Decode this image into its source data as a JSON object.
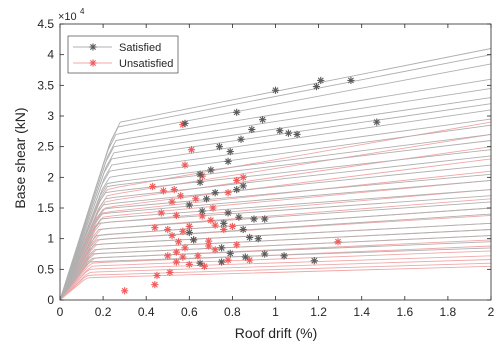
{
  "chart_data": {
    "type": "scatter",
    "xlabel": "Roof drift (%)",
    "ylabel": "Base shear (kN)",
    "y_multiplier_label": "×10",
    "y_multiplier_exponent": "4",
    "xlim": [
      0,
      2
    ],
    "ylim": [
      0,
      4.5
    ],
    "x_ticks": [
      "0",
      "0.2",
      "0.4",
      "0.6",
      "0.8",
      "1",
      "1.2",
      "1.4",
      "1.6",
      "1.8",
      "2"
    ],
    "y_ticks": [
      "0",
      "0.5",
      "1",
      "1.5",
      "2",
      "2.5",
      "3",
      "3.5",
      "4",
      "4.5"
    ],
    "grid": false,
    "legend_position": "top-left",
    "colors": {
      "satisfied_marker": "#5a5a5a",
      "satisfied_line": "#b0b0b0",
      "unsatisfied_marker": "#f05a5a",
      "unsatisfied_line": "#f0a8a8"
    },
    "curves": {
      "description": "pushover capacity curves: [yield drift %, yield shear ×1e4 kN, shear at 2% ×1e4 kN]",
      "satisfied": [
        [
          0.28,
          2.9,
          4.1
        ],
        [
          0.27,
          2.82,
          4.0
        ],
        [
          0.26,
          2.7,
          3.85
        ],
        [
          0.26,
          2.6,
          3.6
        ],
        [
          0.25,
          2.5,
          3.45
        ],
        [
          0.25,
          2.4,
          3.3
        ],
        [
          0.24,
          2.3,
          3.2
        ],
        [
          0.24,
          2.2,
          3.1
        ],
        [
          0.23,
          2.1,
          2.95
        ],
        [
          0.23,
          2.0,
          2.85
        ],
        [
          0.22,
          1.9,
          2.7
        ],
        [
          0.22,
          1.85,
          2.6
        ],
        [
          0.21,
          1.75,
          2.45
        ],
        [
          0.21,
          1.65,
          2.35
        ],
        [
          0.2,
          1.55,
          2.2
        ],
        [
          0.2,
          1.48,
          2.05
        ],
        [
          0.19,
          1.4,
          1.95
        ],
        [
          0.19,
          1.32,
          1.8
        ],
        [
          0.18,
          1.25,
          1.7
        ],
        [
          0.18,
          1.15,
          1.6
        ],
        [
          0.17,
          1.05,
          1.5
        ],
        [
          0.17,
          0.98,
          1.4
        ],
        [
          0.16,
          0.9,
          1.25
        ],
        [
          0.16,
          0.82,
          1.15
        ],
        [
          0.15,
          0.75,
          1.05
        ],
        [
          0.15,
          0.68,
          0.95
        ],
        [
          0.14,
          0.62,
          0.85
        ]
      ],
      "unsatisfied": [
        [
          0.22,
          1.8,
          2.9
        ],
        [
          0.22,
          1.7,
          2.7
        ],
        [
          0.21,
          1.6,
          2.5
        ],
        [
          0.21,
          1.5,
          2.3
        ],
        [
          0.2,
          1.42,
          2.1
        ],
        [
          0.2,
          1.35,
          1.95
        ],
        [
          0.19,
          1.25,
          1.8
        ],
        [
          0.19,
          1.15,
          1.65
        ],
        [
          0.18,
          1.05,
          1.5
        ],
        [
          0.18,
          0.98,
          1.38
        ],
        [
          0.17,
          0.9,
          1.25
        ],
        [
          0.17,
          0.82,
          1.15
        ],
        [
          0.16,
          0.75,
          1.05
        ],
        [
          0.16,
          0.68,
          0.98
        ],
        [
          0.15,
          0.6,
          0.88
        ],
        [
          0.15,
          0.55,
          0.8
        ],
        [
          0.14,
          0.5,
          0.72
        ],
        [
          0.14,
          0.45,
          0.66
        ],
        [
          0.13,
          0.4,
          0.6
        ],
        [
          0.13,
          0.36,
          0.55
        ]
      ]
    },
    "series": [
      {
        "name": "Satisfied",
        "points": [
          [
            1.21,
            3.58
          ],
          [
            1.35,
            3.58
          ],
          [
            1.19,
            3.48
          ],
          [
            1.0,
            3.42
          ],
          [
            0.58,
            2.88
          ],
          [
            0.82,
            3.06
          ],
          [
            0.94,
            2.94
          ],
          [
            0.89,
            2.78
          ],
          [
            1.02,
            2.76
          ],
          [
            1.06,
            2.72
          ],
          [
            1.1,
            2.7
          ],
          [
            1.47,
            2.9
          ],
          [
            0.84,
            2.62
          ],
          [
            0.74,
            2.5
          ],
          [
            0.79,
            2.42
          ],
          [
            0.78,
            2.26
          ],
          [
            0.7,
            2.12
          ],
          [
            0.65,
            2.05
          ],
          [
            0.65,
            1.92
          ],
          [
            0.72,
            1.75
          ],
          [
            0.85,
            1.86
          ],
          [
            0.82,
            1.8
          ],
          [
            0.68,
            1.65
          ],
          [
            0.6,
            1.55
          ],
          [
            0.66,
            1.45
          ],
          [
            0.78,
            1.42
          ],
          [
            0.83,
            1.35
          ],
          [
            0.9,
            1.32
          ],
          [
            0.95,
            1.32
          ],
          [
            0.76,
            1.25
          ],
          [
            0.85,
            1.15
          ],
          [
            0.6,
            1.1
          ],
          [
            0.62,
            0.98
          ],
          [
            0.88,
            1.02
          ],
          [
            0.92,
            1.0
          ],
          [
            0.75,
            0.85
          ],
          [
            0.79,
            0.76
          ],
          [
            0.86,
            0.7
          ],
          [
            0.75,
            0.62
          ],
          [
            0.65,
            0.6
          ],
          [
            1.04,
            0.72
          ],
          [
            1.18,
            0.64
          ],
          [
            0.95,
            0.75
          ]
        ]
      },
      {
        "name": "Unsatisfied",
        "points": [
          [
            0.57,
            2.86
          ],
          [
            0.61,
            2.45
          ],
          [
            0.58,
            2.2
          ],
          [
            0.66,
            2.02
          ],
          [
            0.43,
            1.85
          ],
          [
            0.48,
            1.78
          ],
          [
            0.53,
            1.8
          ],
          [
            0.56,
            1.7
          ],
          [
            0.63,
            1.65
          ],
          [
            0.52,
            1.6
          ],
          [
            0.47,
            1.42
          ],
          [
            0.54,
            1.38
          ],
          [
            0.66,
            1.37
          ],
          [
            0.7,
            1.3
          ],
          [
            0.44,
            1.18
          ],
          [
            0.5,
            1.15
          ],
          [
            0.6,
            1.2
          ],
          [
            0.72,
            1.22
          ],
          [
            0.76,
            1.15
          ],
          [
            0.8,
            1.2
          ],
          [
            0.52,
            1.05
          ],
          [
            0.57,
            1.12
          ],
          [
            0.55,
            0.95
          ],
          [
            0.62,
            0.98
          ],
          [
            0.69,
            0.96
          ],
          [
            0.58,
            0.85
          ],
          [
            0.54,
            0.78
          ],
          [
            0.64,
            0.72
          ],
          [
            0.69,
            0.88
          ],
          [
            0.72,
            0.82
          ],
          [
            0.82,
            0.9
          ],
          [
            0.5,
            0.72
          ],
          [
            0.57,
            0.7
          ],
          [
            0.54,
            0.62
          ],
          [
            0.6,
            0.58
          ],
          [
            0.67,
            0.55
          ],
          [
            0.78,
            0.65
          ],
          [
            0.88,
            0.65
          ],
          [
            0.45,
            0.4
          ],
          [
            0.51,
            0.45
          ],
          [
            0.44,
            0.25
          ],
          [
            0.3,
            0.15
          ],
          [
            1.29,
            0.95
          ],
          [
            0.85,
            2.0
          ],
          [
            0.82,
            1.95
          ],
          [
            0.71,
            1.5
          ],
          [
            0.78,
            1.75
          ]
        ]
      }
    ]
  }
}
